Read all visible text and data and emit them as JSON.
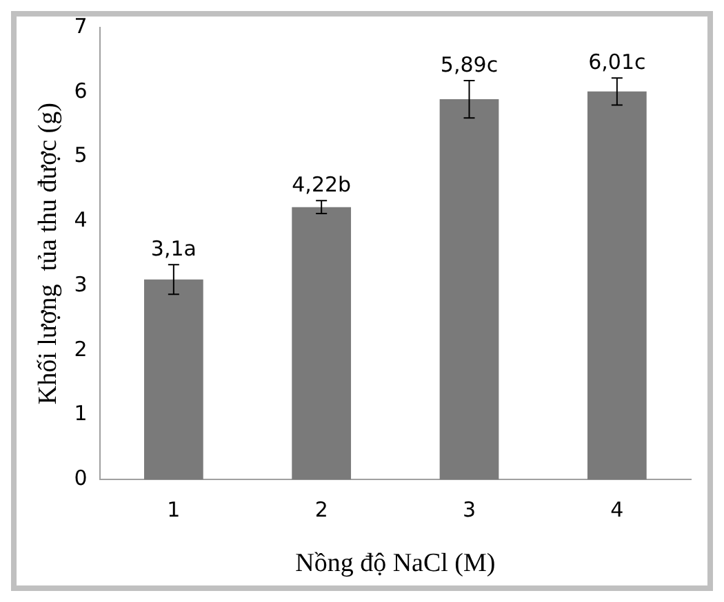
{
  "chart_data": {
    "type": "bar",
    "xlabel": "Nồng độ NaCl (M)",
    "ylabel": "Khối lượng  tủa thu được (g)",
    "categories": [
      "1",
      "2",
      "3",
      "4"
    ],
    "values": [
      3.1,
      4.22,
      5.89,
      6.01
    ],
    "errors": [
      0.23,
      0.1,
      0.29,
      0.21
    ],
    "value_labels": [
      "3,1a",
      "4,22b",
      "5,89c",
      "6,01c"
    ],
    "color": "#7a7a7a",
    "ylim": [
      0,
      7
    ],
    "yticks": [
      0,
      1,
      2,
      3,
      4,
      5,
      6,
      7
    ],
    "grid": false,
    "legend": false
  }
}
